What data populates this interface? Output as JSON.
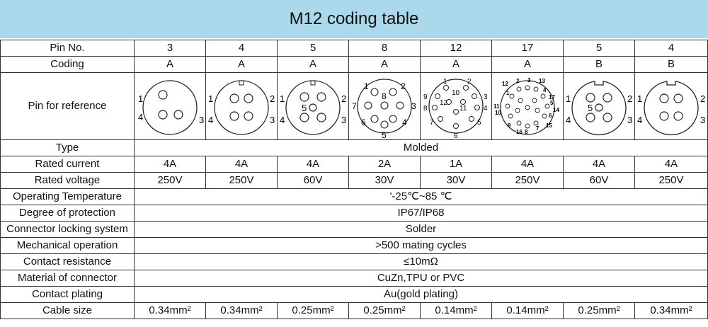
{
  "title": "M12 coding table",
  "rows": {
    "pin_no": {
      "label": "Pin No.",
      "values": [
        "3",
        "4",
        "5",
        "8",
        "12",
        "17",
        "5",
        "4"
      ]
    },
    "coding": {
      "label": "Coding",
      "values": [
        "A",
        "A",
        "A",
        "A",
        "A",
        "A",
        "B",
        "B"
      ]
    },
    "pin_ref": {
      "label": "Pin for reference"
    },
    "type": {
      "label": "Type",
      "value": "Molded"
    },
    "rated_current": {
      "label": "Rated current",
      "values": [
        "4A",
        "4A",
        "4A",
        "2A",
        "1A",
        "4A",
        "4A",
        "4A"
      ]
    },
    "rated_voltage": {
      "label": "Rated voltage",
      "values": [
        "250V",
        "250V",
        "60V",
        "30V",
        "30V",
        "250V",
        "60V",
        "250V"
      ]
    },
    "operating_temperature": {
      "label": "Operating Temperature",
      "value": "'-25℃~85 ℃"
    },
    "degree_of_protection": {
      "label": "Degree of protection",
      "value": "IP67/IP68"
    },
    "connector_locking": {
      "label": "Connector locking system",
      "value": "Solder"
    },
    "mechanical_operation": {
      "label": "Mechanical operation",
      "value": ">500 mating cycles"
    },
    "contact_resistance": {
      "label": "Contact resistance",
      "value": "≤10mΩ"
    },
    "material": {
      "label": "Material of connector",
      "value": "CuZn,TPU or PVC"
    },
    "contact_plating": {
      "label": "Contact plating",
      "value": "Au(gold plating)"
    },
    "cable_size": {
      "label": "Cable size",
      "values": [
        "0.34mm²",
        "0.34mm²",
        "0.25mm²",
        "0.25mm²",
        "0.14mm²",
        "0.14mm²",
        "0.25mm²",
        "0.34mm²"
      ]
    }
  },
  "diagrams": {
    "d3": {
      "n1": "1",
      "n4": "4",
      "n3": "3"
    },
    "d4": {
      "n1": "1",
      "n2": "2",
      "n3": "3",
      "n4": "4"
    },
    "d5": {
      "n1": "1",
      "n2": "2",
      "n3": "3",
      "n4": "4",
      "n5": "5"
    },
    "d8": {
      "n1": "1",
      "n2": "2",
      "n3": "3",
      "n4": "4",
      "n5": "5",
      "n6": "6",
      "n7": "7",
      "n8": "8"
    },
    "d12": {
      "n1": "1",
      "n2": "2",
      "n3": "3",
      "n4": "4",
      "n5": "5",
      "n6": "6",
      "n7": "7",
      "n8": "8",
      "n9": "9",
      "n10": "10",
      "n11": "11",
      "n12": "12"
    },
    "d17": {
      "n1": "1",
      "n2": "2",
      "n3": "3",
      "n4": "4",
      "n5": "5",
      "n6": "6",
      "n7": "7",
      "n8": "8",
      "n9": "9",
      "n10": "10",
      "n11": "11",
      "n12": "12",
      "n13": "13",
      "n14": "14",
      "n15": "15",
      "n16": "16",
      "n17": "17"
    },
    "d5b": {
      "n1": "1",
      "n2": "2",
      "n3": "3",
      "n4": "4",
      "n5": "5"
    },
    "d4b": {
      "n1": "1",
      "n2": "2",
      "n3": "3",
      "n4": "4"
    }
  }
}
